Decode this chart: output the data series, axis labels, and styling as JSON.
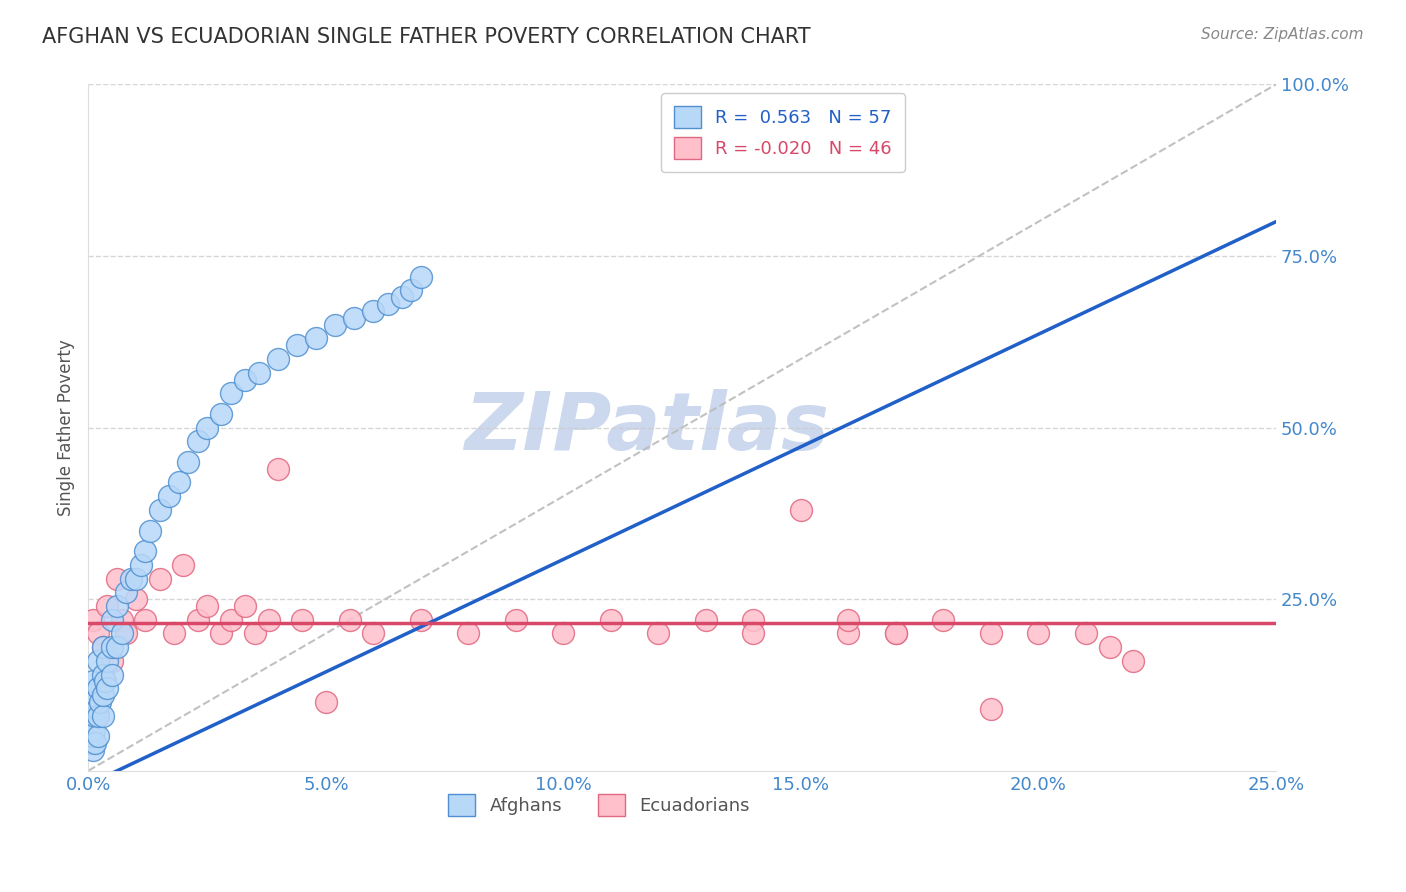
{
  "title": "AFGHAN VS ECUADORIAN SINGLE FATHER POVERTY CORRELATION CHART",
  "source": "Source: ZipAtlas.com",
  "ylabel": "Single Father Poverty",
  "xlim": [
    0.0,
    0.25
  ],
  "ylim": [
    0.0,
    1.0
  ],
  "afghan_R": 0.563,
  "afghan_N": 57,
  "ecuadorian_R": -0.02,
  "ecuadorian_N": 46,
  "afghan_color": "#b8d8f8",
  "afghan_edge_color": "#5090d0",
  "ecuadorian_color": "#ffc0cc",
  "ecuadorian_edge_color": "#e06880",
  "blue_line_color": "#2060c8",
  "pink_line_color": "#d84868",
  "ref_line_color": "#bbbbbb",
  "grid_color": "#cccccc",
  "title_color": "#333333",
  "axis_label_color": "#555555",
  "tick_color": "#4488cc",
  "watermark_color": "#ccd8ee",
  "blue_line_x0": 0.0,
  "blue_line_y0": -0.02,
  "blue_line_x1": 0.25,
  "blue_line_y1": 0.8,
  "pink_line_y": 0.215,
  "afghan_x": [
    0.0005,
    0.0005,
    0.0005,
    0.0008,
    0.001,
    0.001,
    0.001,
    0.001,
    0.001,
    0.0012,
    0.0015,
    0.0015,
    0.0018,
    0.002,
    0.002,
    0.002,
    0.002,
    0.0025,
    0.003,
    0.003,
    0.003,
    0.003,
    0.0035,
    0.004,
    0.004,
    0.005,
    0.005,
    0.005,
    0.006,
    0.006,
    0.007,
    0.008,
    0.009,
    0.01,
    0.011,
    0.012,
    0.013,
    0.015,
    0.017,
    0.019,
    0.021,
    0.023,
    0.025,
    0.028,
    0.03,
    0.033,
    0.036,
    0.04,
    0.044,
    0.048,
    0.052,
    0.056,
    0.06,
    0.063,
    0.066,
    0.068,
    0.07
  ],
  "afghan_y": [
    0.04,
    0.06,
    0.08,
    0.05,
    0.03,
    0.05,
    0.07,
    0.1,
    0.13,
    0.06,
    0.04,
    0.08,
    0.09,
    0.05,
    0.08,
    0.12,
    0.16,
    0.1,
    0.08,
    0.11,
    0.14,
    0.18,
    0.13,
    0.12,
    0.16,
    0.14,
    0.18,
    0.22,
    0.18,
    0.24,
    0.2,
    0.26,
    0.28,
    0.28,
    0.3,
    0.32,
    0.35,
    0.38,
    0.4,
    0.42,
    0.45,
    0.48,
    0.5,
    0.52,
    0.55,
    0.57,
    0.58,
    0.6,
    0.62,
    0.63,
    0.65,
    0.66,
    0.67,
    0.68,
    0.69,
    0.7,
    0.72
  ],
  "ecuadorian_x": [
    0.001,
    0.002,
    0.003,
    0.004,
    0.005,
    0.006,
    0.007,
    0.008,
    0.01,
    0.012,
    0.015,
    0.018,
    0.02,
    0.023,
    0.025,
    0.028,
    0.03,
    0.033,
    0.035,
    0.038,
    0.04,
    0.045,
    0.05,
    0.055,
    0.06,
    0.07,
    0.08,
    0.09,
    0.1,
    0.11,
    0.12,
    0.13,
    0.14,
    0.15,
    0.16,
    0.17,
    0.18,
    0.19,
    0.2,
    0.21,
    0.215,
    0.22,
    0.14,
    0.16,
    0.17,
    0.19
  ],
  "ecuadorian_y": [
    0.22,
    0.2,
    0.18,
    0.24,
    0.16,
    0.28,
    0.22,
    0.2,
    0.25,
    0.22,
    0.28,
    0.2,
    0.3,
    0.22,
    0.24,
    0.2,
    0.22,
    0.24,
    0.2,
    0.22,
    0.44,
    0.22,
    0.1,
    0.22,
    0.2,
    0.22,
    0.2,
    0.22,
    0.2,
    0.22,
    0.2,
    0.22,
    0.22,
    0.38,
    0.2,
    0.2,
    0.22,
    0.2,
    0.2,
    0.2,
    0.18,
    0.16,
    0.2,
    0.22,
    0.2,
    0.09
  ]
}
